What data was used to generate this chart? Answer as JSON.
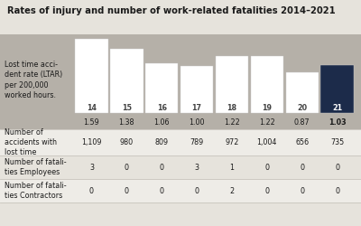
{
  "title": "Rates of injury and number of work-related fatalities 2014–2021",
  "years": [
    "14",
    "15",
    "16",
    "17",
    "18",
    "19",
    "20",
    "21"
  ],
  "ltar_values": [
    1.59,
    1.38,
    1.06,
    1.0,
    1.22,
    1.22,
    0.87,
    1.03
  ],
  "ltar_str": [
    "1.59",
    "1.38",
    "1.06",
    "1.00",
    "1.22",
    "1.22",
    "0.87",
    "1.03"
  ],
  "bar_colors": [
    "#ffffff",
    "#ffffff",
    "#ffffff",
    "#ffffff",
    "#ffffff",
    "#ffffff",
    "#ffffff",
    "#1c2b4a"
  ],
  "year_label_colors": [
    "#444444",
    "#444444",
    "#444444",
    "#444444",
    "#444444",
    "#444444",
    "#444444",
    "#ffffff"
  ],
  "ltar_label_fw": [
    "normal",
    "normal",
    "normal",
    "normal",
    "normal",
    "normal",
    "normal",
    "bold"
  ],
  "accidents_str": [
    "1,109",
    "980",
    "809",
    "789",
    "972",
    "1,004",
    "656",
    "735"
  ],
  "fatalities_employees": [
    "3",
    "0",
    "0",
    "3",
    "1",
    "0",
    "0",
    "0"
  ],
  "fatalities_contractors": [
    "0",
    "0",
    "0",
    "0",
    "2",
    "0",
    "0",
    "0"
  ],
  "bg_color": "#e6e3dc",
  "gray_band_color": "#b5b0a8",
  "row1_bg": "#eeece7",
  "row2_bg": "#e6e3dc",
  "row3_bg": "#eeece7",
  "divider_color": "#c8c4bc",
  "ltar_max": 1.65,
  "label_row1": "Lost time acci-\ndent rate (LTAR)\nper 200,000\nworked hours.",
  "label_row2": "Number of\naccidents with\nlost time",
  "label_row3": "Number of fatali-\nties Employees",
  "label_row4": "Number of fatali-\nties Contractors",
  "title_fontsize": 7.2,
  "label_fontsize": 5.8,
  "data_fontsize": 5.8,
  "year_fontsize": 5.8
}
